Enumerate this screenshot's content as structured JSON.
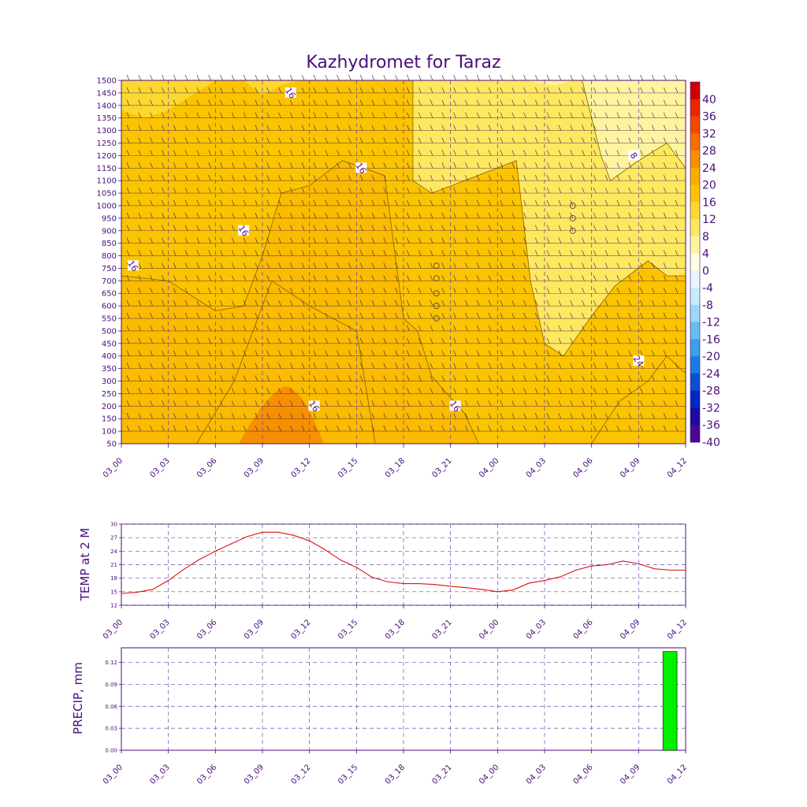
{
  "title": "Kazhydromet for Taraz",
  "colors": {
    "axis": "#4a0e7a",
    "temp_line": "#dd1111",
    "precip_bar": "#00ee00",
    "grid": "#6a4caa"
  },
  "time_labels": [
    "03_00",
    "03_03",
    "03_06",
    "03_09",
    "03_12",
    "03_15",
    "03_18",
    "03_21",
    "04_00",
    "04_03",
    "04_06",
    "04_09",
    "04_12"
  ],
  "chart_data": [
    {
      "type": "heatmap",
      "title": "Kazhydromet for Taraz",
      "x_categories": [
        "03_00",
        "03_03",
        "03_06",
        "03_09",
        "03_12",
        "03_15",
        "03_18",
        "03_21",
        "04_00",
        "04_03",
        "04_06",
        "04_09",
        "04_12"
      ],
      "y_ticks": [
        50,
        100,
        150,
        200,
        250,
        300,
        350,
        400,
        450,
        500,
        550,
        600,
        650,
        700,
        750,
        800,
        850,
        900,
        950,
        1000,
        1050,
        1100,
        1150,
        1200,
        1250,
        1300,
        1350,
        1400,
        1450,
        1500
      ],
      "ylim": [
        50,
        1500
      ],
      "colorbar_levels": [
        40,
        36,
        32,
        28,
        24,
        20,
        16,
        12,
        8,
        4,
        0,
        -4,
        -8,
        -12,
        -16,
        -20,
        -24,
        -28,
        -32,
        -36,
        -40
      ],
      "colorbar_colors": [
        "#cc0000",
        "#e62800",
        "#f04a00",
        "#f46e00",
        "#f79000",
        "#f9ac00",
        "#fbc400",
        "#fcd830",
        "#fde860",
        "#fef4a0",
        "#fffde0",
        "#e6f6fc",
        "#c4ecfa",
        "#9ad8f6",
        "#64bff0",
        "#3aa0e8",
        "#1a7ae0",
        "#0a50d0",
        "#0028c0",
        "#1a0aa0",
        "#4a0890"
      ],
      "contour_labels": [
        "16",
        "16",
        "16",
        "16",
        "16",
        "24",
        "8",
        "16"
      ],
      "grid": true
    },
    {
      "type": "line",
      "ylabel": "TEMP at 2 M",
      "x": [
        "03_00",
        "03_01",
        "03_02",
        "03_03",
        "03_04",
        "03_05",
        "03_06",
        "03_07",
        "03_08",
        "03_09",
        "03_10",
        "03_11",
        "03_12",
        "03_13",
        "03_14",
        "03_15",
        "03_16",
        "03_17",
        "03_18",
        "03_19",
        "03_20",
        "03_21",
        "03_22",
        "03_23",
        "04_00",
        "04_01",
        "04_02",
        "04_03",
        "04_04",
        "04_05",
        "04_06",
        "04_07",
        "04_08",
        "04_09",
        "04_10",
        "04_11",
        "04_12"
      ],
      "series": [
        {
          "values": [
            14.6,
            14.9,
            15.5,
            17.5,
            20,
            22.2,
            24,
            25.6,
            27.2,
            28.2,
            28.2,
            27.5,
            26.3,
            24.3,
            22,
            20.4,
            18.2,
            17.2,
            16.8,
            16.8,
            16.6,
            16.2,
            15.9,
            15.5,
            15.0,
            15.4,
            16.9,
            17.5,
            18.3,
            19.8,
            20.7,
            21.0,
            21.8,
            21.2,
            20.1,
            19.8,
            19.8
          ]
        }
      ],
      "ylim": [
        12,
        30
      ],
      "y_ticks": [
        12,
        15,
        18,
        21,
        24,
        27,
        30
      ],
      "grid": true
    },
    {
      "type": "bar",
      "ylabel": "PRECIP, mm",
      "series": [
        {
          "values": [
            0,
            0,
            0,
            0,
            0,
            0,
            0,
            0,
            0,
            0,
            0,
            0,
            0,
            0,
            0,
            0,
            0,
            0,
            0,
            0,
            0,
            0,
            0,
            0,
            0,
            0,
            0,
            0,
            0,
            0,
            0,
            0,
            0,
            0,
            0,
            0.135
          ]
        }
      ],
      "ylim": [
        0,
        0.14
      ],
      "y_ticks": [
        "0.00",
        "0.03",
        "0.06",
        "0.09",
        "0.12"
      ],
      "grid": true
    }
  ]
}
